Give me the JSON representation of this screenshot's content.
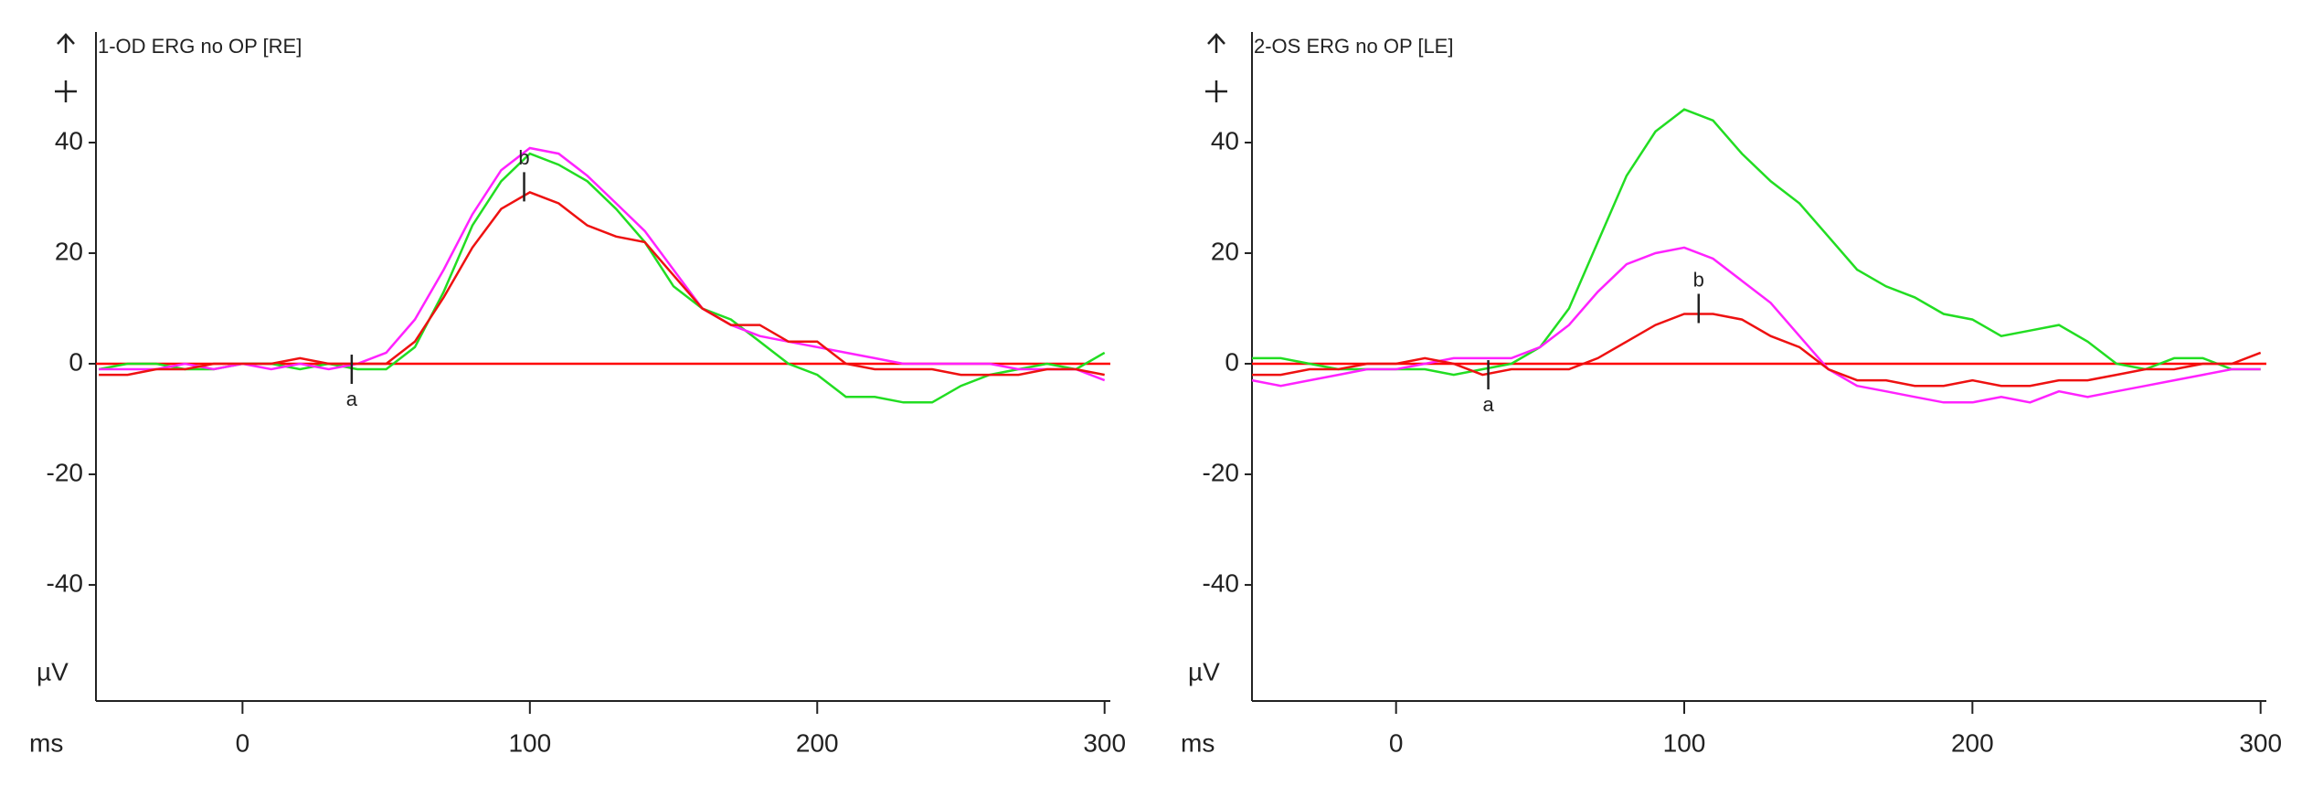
{
  "chart_data": [
    {
      "type": "line",
      "title": "1-OD ERG no OP [RE]",
      "x_label": "ms",
      "y_label": "µV",
      "x": [
        -50,
        -40,
        -30,
        -20,
        -10,
        0,
        10,
        20,
        30,
        40,
        50,
        60,
        70,
        80,
        90,
        100,
        110,
        120,
        130,
        140,
        150,
        160,
        170,
        180,
        190,
        200,
        210,
        220,
        230,
        240,
        250,
        260,
        270,
        280,
        290,
        300
      ],
      "series": [
        {
          "color": "#22dd22",
          "values": [
            -1,
            0,
            0,
            -1,
            -1,
            0,
            0,
            -1,
            0,
            -1,
            -1,
            3,
            13,
            25,
            33,
            38,
            36,
            33,
            28,
            22,
            14,
            10,
            8,
            4,
            0,
            -2,
            -6,
            -6,
            -7,
            -7,
            -4,
            -2,
            -1,
            0,
            -1,
            2
          ]
        },
        {
          "color": "#ff22ff",
          "values": [
            -1,
            -1,
            -1,
            0,
            -1,
            0,
            -1,
            0,
            -1,
            0,
            2,
            8,
            17,
            27,
            35,
            39,
            38,
            34,
            29,
            24,
            17,
            10,
            7,
            5,
            4,
            3,
            2,
            1,
            0,
            0,
            0,
            0,
            -1,
            -1,
            -1,
            -3
          ]
        },
        {
          "color": "#ee1111",
          "values": [
            -2,
            -2,
            -1,
            -1,
            0,
            0,
            0,
            1,
            0,
            0,
            0,
            4,
            12,
            21,
            28,
            31,
            29,
            25,
            23,
            22,
            16,
            10,
            7,
            7,
            4,
            4,
            0,
            -1,
            -1,
            -1,
            -2,
            -2,
            -2,
            -1,
            -1,
            -2
          ]
        }
      ],
      "hline": {
        "value": 0,
        "color": "#ff0000"
      },
      "annotations": [
        {
          "text": "a",
          "x": 38,
          "y": -1,
          "pos": "below"
        },
        {
          "text": "b",
          "x": 98,
          "y": 32,
          "pos": "above"
        }
      ],
      "xlim": [
        -51,
        302
      ],
      "ylim": [
        -61,
        60
      ],
      "xticks": [
        0,
        100,
        200,
        300
      ],
      "yticks": [
        40,
        20,
        0,
        -20,
        -40
      ]
    },
    {
      "type": "line",
      "title": "2-OS ERG no OP [LE]",
      "x_label": "ms",
      "y_label": "µV",
      "x": [
        -50,
        -40,
        -30,
        -20,
        -10,
        0,
        10,
        20,
        30,
        40,
        50,
        60,
        70,
        80,
        90,
        100,
        110,
        120,
        130,
        140,
        150,
        160,
        170,
        180,
        190,
        200,
        210,
        220,
        230,
        240,
        250,
        260,
        270,
        280,
        290,
        300
      ],
      "series": [
        {
          "color": "#22dd22",
          "values": [
            1,
            1,
            0,
            -1,
            -1,
            -1,
            -1,
            -2,
            -1,
            0,
            3,
            10,
            22,
            34,
            42,
            46,
            44,
            38,
            33,
            29,
            23,
            17,
            14,
            12,
            9,
            8,
            5,
            6,
            7,
            4,
            0,
            -1,
            1,
            1,
            -1,
            -1
          ]
        },
        {
          "color": "#ff22ff",
          "values": [
            -3,
            -4,
            -3,
            -2,
            -1,
            -1,
            0,
            1,
            1,
            1,
            3,
            7,
            13,
            18,
            20,
            21,
            19,
            15,
            11,
            5,
            -1,
            -4,
            -5,
            -6,
            -7,
            -7,
            -6,
            -7,
            -5,
            -6,
            -5,
            -4,
            -3,
            -2,
            -1,
            -1
          ]
        },
        {
          "color": "#ee1111",
          "values": [
            -2,
            -2,
            -1,
            -1,
            0,
            0,
            1,
            0,
            -2,
            -1,
            -1,
            -1,
            1,
            4,
            7,
            9,
            9,
            8,
            5,
            3,
            -1,
            -3,
            -3,
            -4,
            -4,
            -3,
            -4,
            -4,
            -3,
            -3,
            -2,
            -1,
            -1,
            0,
            0,
            2
          ]
        }
      ],
      "hline": {
        "value": 0,
        "color": "#ff0000"
      },
      "annotations": [
        {
          "text": "a",
          "x": 32,
          "y": -2,
          "pos": "below"
        },
        {
          "text": "b",
          "x": 105,
          "y": 10,
          "pos": "above"
        }
      ],
      "xlim": [
        -50,
        302
      ],
      "ylim": [
        -61,
        60
      ],
      "xticks": [
        0,
        100,
        200,
        300
      ],
      "yticks": [
        40,
        20,
        0,
        -20,
        -40
      ]
    }
  ]
}
